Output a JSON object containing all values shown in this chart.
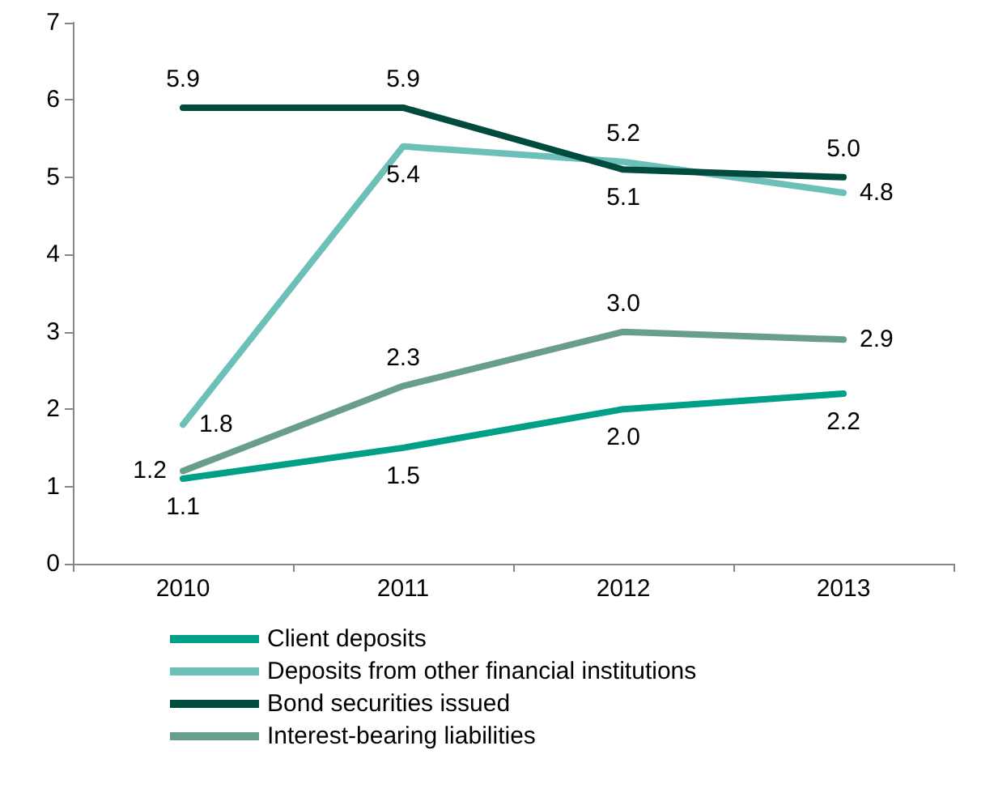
{
  "chart_data": {
    "type": "line",
    "categories": [
      "2010",
      "2011",
      "2012",
      "2013"
    ],
    "series": [
      {
        "name": "Client deposits",
        "color": "#00a088",
        "values": [
          1.1,
          1.5,
          2.0,
          2.2
        ],
        "value_labels": [
          "1.1",
          "1.5",
          "2.0",
          "2.2"
        ]
      },
      {
        "name": "Deposits from other financial institutions",
        "color": "#6cc0b8",
        "values": [
          1.8,
          5.4,
          5.2,
          4.8
        ],
        "value_labels": [
          "1.8",
          "5.4",
          "5.2",
          "4.8"
        ]
      },
      {
        "name": "Bond securities issued",
        "color": "#004a3e",
        "values": [
          5.9,
          5.9,
          5.1,
          5.0
        ],
        "value_labels": [
          "5.9",
          "5.9",
          "5.1",
          "5.0"
        ]
      },
      {
        "name": "Interest-bearing liabilities",
        "color": "#6a9e8c",
        "values": [
          1.2,
          2.3,
          3.0,
          2.9
        ],
        "value_labels": [
          "1.2",
          "2.3",
          "3.0",
          "2.9"
        ]
      }
    ],
    "ylim": [
      0,
      7
    ],
    "yticks": [
      0,
      1,
      2,
      3,
      4,
      5,
      6,
      7
    ],
    "grid": false,
    "legend": "bottom",
    "marker": "none",
    "line_style": "solid"
  }
}
